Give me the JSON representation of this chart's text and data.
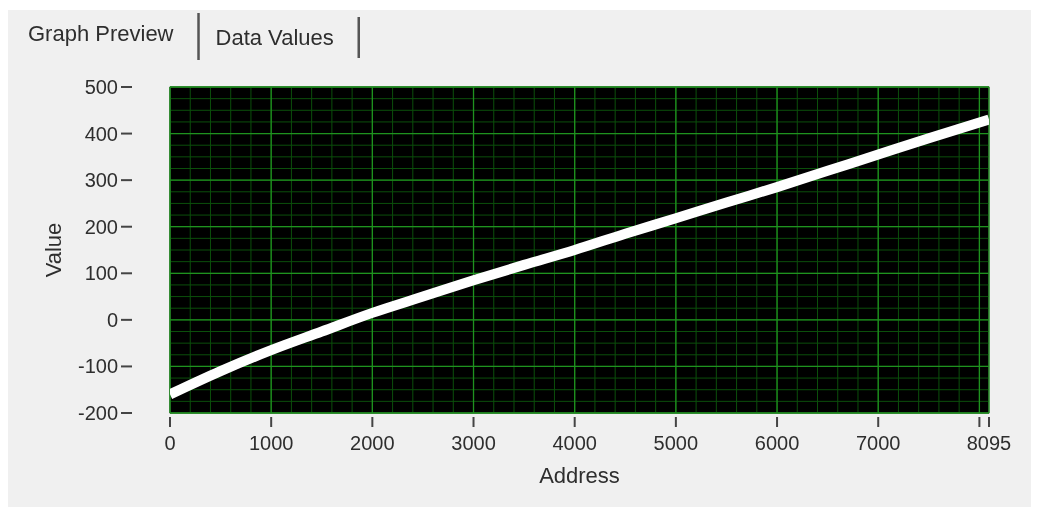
{
  "chart_data": {
    "type": "line",
    "annotations": [
      "Graph Preview",
      "Data Values"
    ],
    "xlabel": "Address",
    "ylabel": "Value",
    "x": [
      0,
      500,
      1000,
      1500,
      2000,
      2500,
      3000,
      3500,
      4000,
      4500,
      5000,
      5500,
      6000,
      6500,
      7000,
      7500,
      8095
    ],
    "series": [
      {
        "color": "#ffffff",
        "values": [
          -160,
          -110,
          -65,
          -25,
          15,
          50,
          85,
          118,
          150,
          185,
          218,
          252,
          285,
          320,
          355,
          390,
          430
        ]
      }
    ],
    "xlim": [
      0,
      8095
    ],
    "ylim": [
      -200,
      500
    ],
    "xticks": [
      0,
      1000,
      2000,
      3000,
      4000,
      5000,
      6000,
      7000,
      {
        "value": 8000,
        "label": null
      },
      8095
    ],
    "yticks": [
      -200,
      -100,
      0,
      100,
      200,
      300,
      400,
      500
    ],
    "grid": true
  }
}
